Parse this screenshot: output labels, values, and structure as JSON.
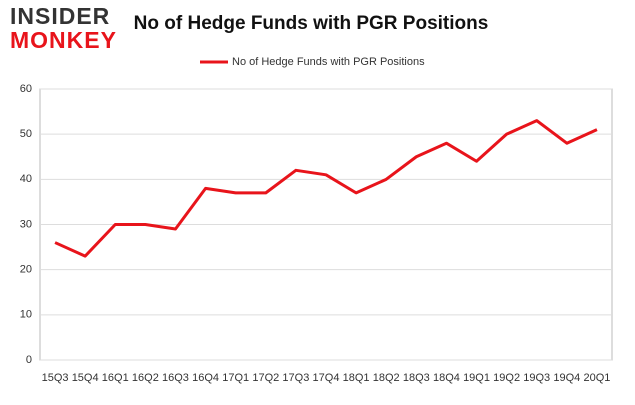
{
  "logo": {
    "line1": "INSIDER",
    "line2": "MONKEY"
  },
  "chart_data": {
    "type": "line",
    "title": "No of Hedge Funds with PGR Positions",
    "categories": [
      "15Q3",
      "15Q4",
      "16Q1",
      "16Q2",
      "16Q3",
      "16Q4",
      "17Q1",
      "17Q2",
      "17Q3",
      "17Q4",
      "18Q1",
      "18Q2",
      "18Q3",
      "18Q4",
      "19Q1",
      "19Q2",
      "19Q3",
      "19Q4",
      "20Q1"
    ],
    "series": [
      {
        "name": "No of Hedge Funds with PGR Positions",
        "color": "#e8141b",
        "values": [
          26,
          23,
          30,
          30,
          29,
          38,
          37,
          37,
          42,
          41,
          37,
          40,
          45,
          48,
          44,
          50,
          53,
          48,
          51
        ]
      }
    ],
    "ylim": [
      0,
      60
    ],
    "yticks": [
      0,
      10,
      20,
      30,
      40,
      50,
      60
    ],
    "grid": true,
    "legend": "top"
  }
}
